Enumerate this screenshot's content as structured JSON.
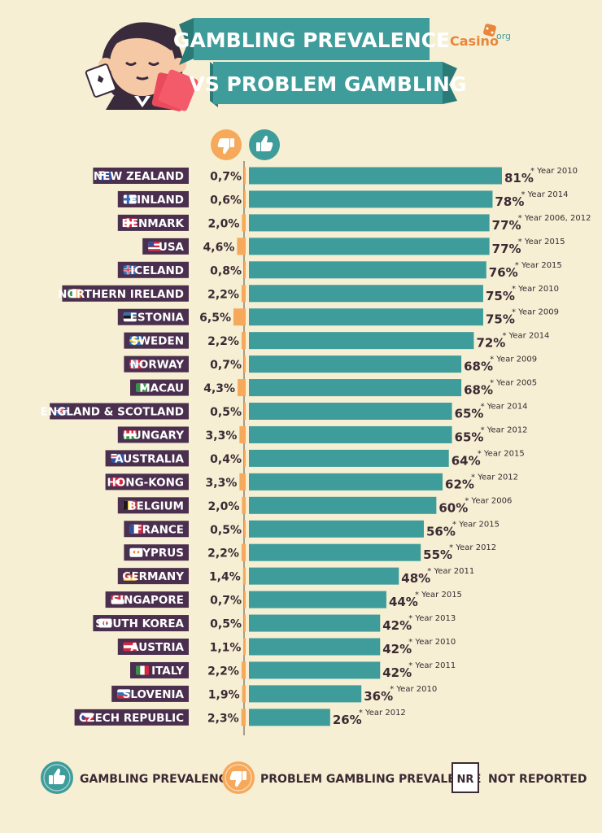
{
  "header": {
    "title_line1": "GAMBLING PREVALENCE",
    "title_line2": "VS PROBLEM GAMBLING",
    "brand": "Casino",
    "brand_suffix": "org"
  },
  "colors": {
    "background": "#f6efd3",
    "teal": "#3e9d9b",
    "teal_dark": "#2f7c7a",
    "orange": "#f6a95b",
    "label_bg": "#4a2f4e",
    "text_dark": "#3b2a33"
  },
  "icons": {
    "problem_column": "thumbs-down-icon",
    "prevalence_column": "thumbs-up-icon"
  },
  "chart_data": {
    "type": "bar",
    "categories": [
      "NEW ZEALAND",
      "FINLAND",
      "DENMARK",
      "USA",
      "ICELAND",
      "NORTHERN IRELAND",
      "ESTONIA",
      "SWEDEN",
      "NORWAY",
      "MACAU",
      "ENGLAND & SCOTLAND",
      "HUNGARY",
      "AUSTRALIA",
      "HONG-KONG",
      "BELGIUM",
      "FRANCE",
      "CYPRUS",
      "GERMANY",
      "SINGAPORE",
      "SOUTH KOREA",
      "AUSTRIA",
      "ITALY",
      "SLOVENIA",
      "CZECH REPUBLIC"
    ],
    "series": [
      {
        "name": "GAMBLING PREVALENCE",
        "values": [
          81,
          78,
          77,
          77,
          76,
          75,
          75,
          72,
          68,
          68,
          65,
          65,
          64,
          62,
          60,
          56,
          55,
          48,
          44,
          42,
          42,
          42,
          36,
          26
        ],
        "labels": [
          "81%",
          "78%",
          "77%",
          "77%",
          "76%",
          "75%",
          "75%",
          "72%",
          "68%",
          "68%",
          "65%",
          "65%",
          "64%",
          "62%",
          "60%",
          "56%",
          "55%",
          "48%",
          "44%",
          "42%",
          "42%",
          "42%",
          "36%",
          "26%"
        ]
      },
      {
        "name": "PROBLEM GAMBLING PREVALENCE",
        "values": [
          0.7,
          0.6,
          2.0,
          4.6,
          0.8,
          2.2,
          6.5,
          2.2,
          0.7,
          4.3,
          0.5,
          3.3,
          0.4,
          3.3,
          2.0,
          0.5,
          2.2,
          1.4,
          0.7,
          0.5,
          1.1,
          2.2,
          1.9,
          2.3
        ],
        "labels": [
          "0,7%",
          "0,6%",
          "2,0%",
          "4,6%",
          "0,8%",
          "2,2%",
          "6,5%",
          "2,2%",
          "0,7%",
          "4,3%",
          "0,5%",
          "3,3%",
          "0,4%",
          "3,3%",
          "2,0%",
          "0,5%",
          "2,2%",
          "1,4%",
          "0,7%",
          "0,5%",
          "1,1%",
          "2,2%",
          "1,9%",
          "2,3%"
        ]
      }
    ],
    "notes": [
      "* Year 2010",
      "* Year 2014",
      "* Year 2006, 2012",
      "* Year 2015",
      "* Year 2015",
      "* Year 2010",
      "* Year 2009",
      "* Year 2014",
      "* Year 2009",
      "* Year 2005",
      "* Year 2014",
      "* Year 2012",
      "* Year 2015",
      "* Year 2012",
      "* Year 2006",
      "* Year 2015",
      "* Year 2012",
      "* Year 2011",
      "* Year 2015",
      "* Year 2013",
      "* Year 2010",
      "* Year 2011",
      "* Year 2010",
      "* Year 2012"
    ],
    "flags": [
      "new-zealand-flag",
      "finland-flag",
      "denmark-flag",
      "usa-flag",
      "iceland-flag",
      "northern-ireland-flag",
      "estonia-flag",
      "sweden-flag",
      "norway-flag",
      "macau-flag",
      "uk-flag",
      "hungary-flag",
      "australia-flag",
      "hong-kong-flag",
      "belgium-flag",
      "france-flag",
      "cyprus-flag",
      "germany-flag",
      "singapore-flag",
      "south-korea-flag",
      "austria-flag",
      "italy-flag",
      "slovenia-flag",
      "czech-republic-flag"
    ],
    "xlim": [
      0,
      100
    ],
    "grid": false,
    "legend_position": "bottom"
  },
  "legend": {
    "gambling": "GAMBLING PREVALENCE",
    "problem": "PROBLEM GAMBLING PREVALENCE",
    "nr_box": "NR",
    "nr_label": "NOT REPORTED"
  }
}
